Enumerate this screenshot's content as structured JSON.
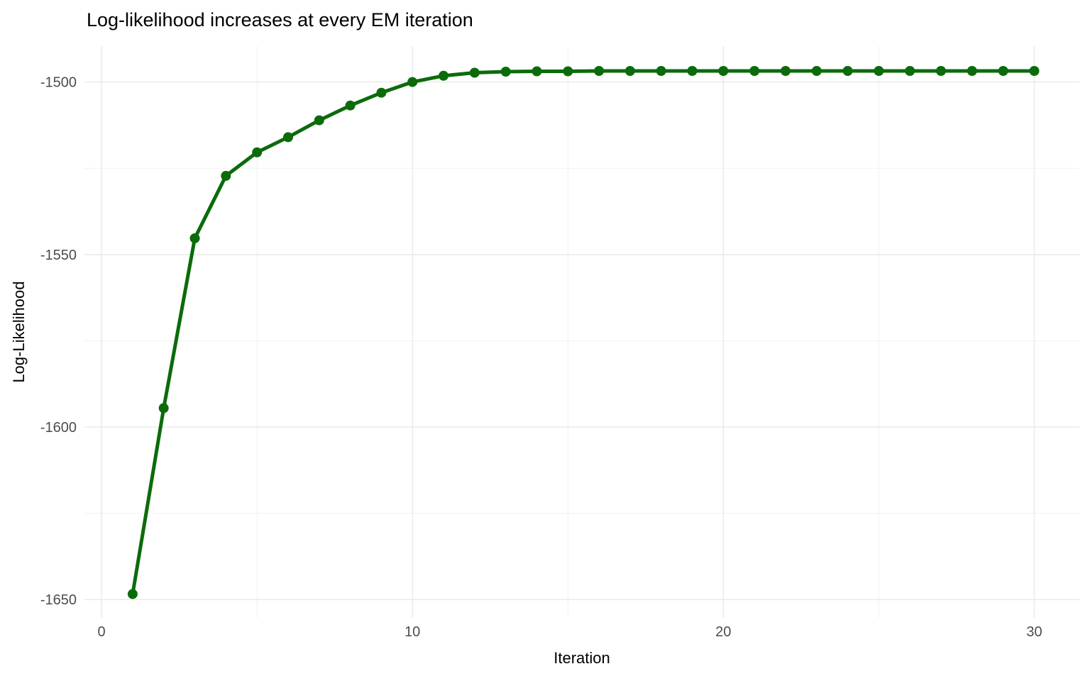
{
  "chart_data": {
    "type": "line",
    "title": "Log-likelihood increases at every EM iteration",
    "xlabel": "Iteration",
    "ylabel": "Log-Likelihood",
    "series": [
      {
        "name": "log-likelihood",
        "color": "#0b6b0b",
        "x": [
          1,
          2,
          3,
          4,
          5,
          6,
          7,
          8,
          9,
          10,
          11,
          12,
          13,
          14,
          15,
          16,
          17,
          18,
          19,
          20,
          21,
          22,
          23,
          24,
          25,
          26,
          27,
          28,
          29,
          30
        ],
        "y": [
          -1648.4,
          -1594.5,
          -1545.3,
          -1527.2,
          -1520.4,
          -1516.0,
          -1511.1,
          -1506.8,
          -1503.1,
          -1500.0,
          -1498.2,
          -1497.3,
          -1497.0,
          -1496.9,
          -1496.9,
          -1496.8,
          -1496.8,
          -1496.8,
          -1496.8,
          -1496.8,
          -1496.8,
          -1496.8,
          -1496.8,
          -1496.8,
          -1496.8,
          -1496.8,
          -1496.8,
          -1496.8,
          -1496.8,
          -1496.8
        ]
      }
    ],
    "x_ticks": [
      0,
      10,
      20,
      30
    ],
    "x_tick_labels": [
      "0",
      "10",
      "20",
      "30"
    ],
    "y_ticks": [
      -1500,
      -1550,
      -1600,
      -1650
    ],
    "y_tick_labels": [
      "-1500",
      "-1550",
      "-1600",
      "-1650"
    ],
    "x_minor_breaks": [
      5,
      15,
      25
    ],
    "y_minor_breaks": [
      -1525,
      -1575,
      -1625
    ],
    "xlim": [
      -0.55,
      31.45
    ],
    "ylim": [
      -1655.3,
      -1489.6
    ],
    "grid": true,
    "legend_position": "none",
    "background_color": "#ffffff",
    "grid_major_color": "#ebebeb",
    "grid_minor_color": "#f1f1f1",
    "tick_label_color": "#4d4d4d",
    "marker": "circle",
    "marker_radius": 7,
    "line_width": 5
  }
}
